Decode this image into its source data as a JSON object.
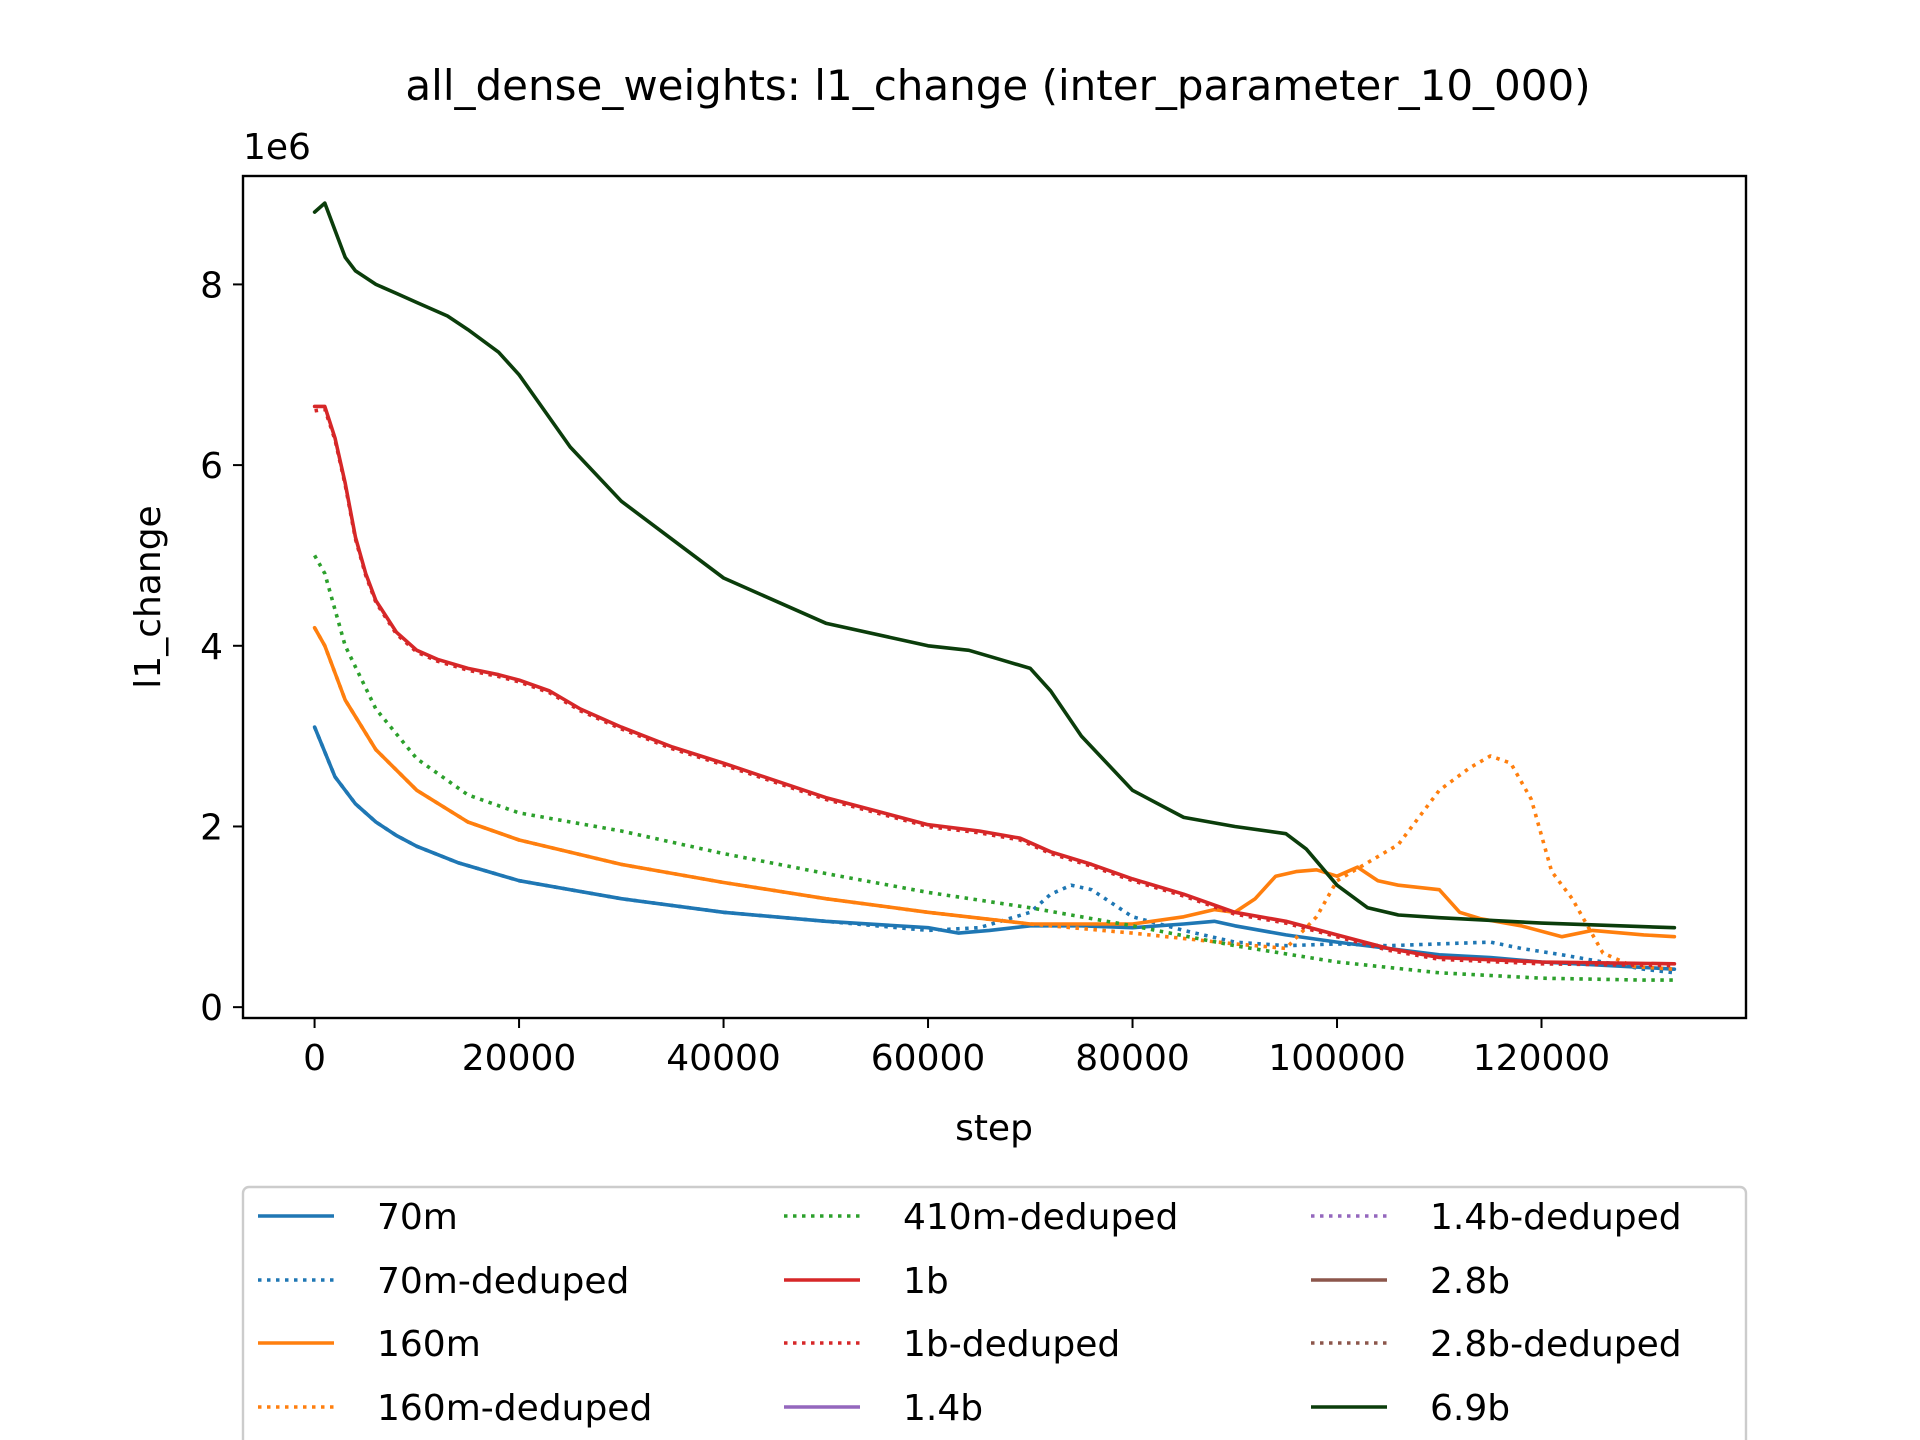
{
  "chart_data": {
    "type": "line",
    "title": "all_dense_weights: l1_change (inter_parameter_10_000)",
    "xlabel": "step",
    "ylabel": "l1_change",
    "y_offset_label": "1e6",
    "xlim": [
      -7000,
      140000
    ],
    "ylim": [
      -0.12,
      9.2
    ],
    "y_scale": 1000000,
    "xticks": [
      0,
      20000,
      40000,
      60000,
      80000,
      100000,
      120000
    ],
    "xtick_labels": [
      "0",
      "20000",
      "40000",
      "60000",
      "80000",
      "100000",
      "120000"
    ],
    "yticks": [
      0,
      2,
      4,
      6,
      8
    ],
    "ytick_labels": [
      "0",
      "2",
      "4",
      "6",
      "8"
    ],
    "grid": false,
    "legend_position": "below plot, 3 columns",
    "series": [
      {
        "name": "70m",
        "color": "#1f77b4",
        "style": "solid",
        "x": [
          0,
          2000,
          4000,
          6000,
          8000,
          10000,
          14000,
          20000,
          30000,
          40000,
          50000,
          60000,
          63000,
          66000,
          70000,
          75000,
          80000,
          85000,
          88000,
          90000,
          95000,
          100000,
          105000,
          110000,
          115000,
          120000,
          125000,
          130000,
          133000
        ],
        "y": [
          3.1,
          2.55,
          2.25,
          2.05,
          1.9,
          1.78,
          1.6,
          1.4,
          1.2,
          1.05,
          0.95,
          0.88,
          0.82,
          0.85,
          0.9,
          0.9,
          0.88,
          0.92,
          0.95,
          0.9,
          0.8,
          0.72,
          0.65,
          0.58,
          0.55,
          0.5,
          0.47,
          0.44,
          0.42
        ]
      },
      {
        "name": "70m-deduped",
        "color": "#1f77b4",
        "style": "dotted",
        "x": [
          0,
          2000,
          4000,
          6000,
          8000,
          10000,
          14000,
          20000,
          30000,
          40000,
          50000,
          60000,
          65000,
          70000,
          72000,
          74000,
          76000,
          78000,
          80000,
          85000,
          90000,
          95000,
          100000,
          105000,
          110000,
          115000,
          118000,
          122000,
          126000,
          130000,
          133000
        ],
        "y": [
          3.1,
          2.55,
          2.25,
          2.05,
          1.9,
          1.78,
          1.6,
          1.4,
          1.2,
          1.05,
          0.95,
          0.85,
          0.88,
          1.05,
          1.25,
          1.35,
          1.3,
          1.15,
          1.0,
          0.85,
          0.72,
          0.68,
          0.7,
          0.68,
          0.7,
          0.72,
          0.65,
          0.58,
          0.5,
          0.42,
          0.38
        ]
      },
      {
        "name": "160m",
        "color": "#ff7f0e",
        "style": "solid",
        "x": [
          0,
          1000,
          3000,
          6000,
          10000,
          15000,
          20000,
          30000,
          40000,
          50000,
          60000,
          70000,
          80000,
          85000,
          88000,
          90000,
          92000,
          94000,
          96000,
          98000,
          100000,
          102000,
          104000,
          106000,
          110000,
          112000,
          114000,
          118000,
          122000,
          125000,
          130000,
          133000
        ],
        "y": [
          4.2,
          4.0,
          3.4,
          2.85,
          2.4,
          2.05,
          1.85,
          1.58,
          1.38,
          1.2,
          1.05,
          0.92,
          0.92,
          1.0,
          1.08,
          1.05,
          1.2,
          1.45,
          1.5,
          1.52,
          1.45,
          1.55,
          1.4,
          1.35,
          1.3,
          1.05,
          0.98,
          0.9,
          0.78,
          0.85,
          0.8,
          0.78
        ]
      },
      {
        "name": "160m-deduped",
        "color": "#ff7f0e",
        "style": "dotted",
        "x": [
          0,
          1000,
          3000,
          6000,
          10000,
          15000,
          20000,
          30000,
          40000,
          50000,
          60000,
          70000,
          80000,
          90000,
          95000,
          98000,
          100000,
          103000,
          106000,
          110000,
          113000,
          115000,
          117000,
          119000,
          121000,
          123000,
          126000,
          129000,
          133000
        ],
        "y": [
          4.2,
          4.0,
          3.4,
          2.85,
          2.4,
          2.05,
          1.85,
          1.58,
          1.38,
          1.2,
          1.05,
          0.92,
          0.82,
          0.7,
          0.65,
          1.0,
          1.4,
          1.6,
          1.8,
          2.4,
          2.65,
          2.78,
          2.7,
          2.3,
          1.5,
          1.2,
          0.6,
          0.45,
          0.42
        ]
      },
      {
        "name": "410m-deduped",
        "color": "#2ca02c",
        "style": "dotted",
        "x": [
          0,
          1000,
          3000,
          6000,
          10000,
          15000,
          20000,
          30000,
          40000,
          50000,
          60000,
          70000,
          80000,
          90000,
          100000,
          110000,
          120000,
          130000,
          133000
        ],
        "y": [
          5.0,
          4.8,
          4.0,
          3.3,
          2.75,
          2.35,
          2.15,
          1.95,
          1.7,
          1.48,
          1.27,
          1.1,
          0.9,
          0.68,
          0.5,
          0.38,
          0.32,
          0.3,
          0.3
        ]
      },
      {
        "name": "1b",
        "color": "#d62728",
        "style": "solid",
        "x": [
          0,
          1000,
          2000,
          3000,
          4000,
          5000,
          6000,
          8000,
          10000,
          12000,
          15000,
          18000,
          20000,
          23000,
          26000,
          30000,
          35000,
          40000,
          50000,
          60000,
          65000,
          69000,
          72000,
          76000,
          80000,
          85000,
          90000,
          95000,
          100000,
          105000,
          110000,
          120000,
          133000
        ],
        "y": [
          6.65,
          6.65,
          6.3,
          5.8,
          5.2,
          4.8,
          4.5,
          4.15,
          3.95,
          3.85,
          3.75,
          3.68,
          3.62,
          3.5,
          3.3,
          3.1,
          2.88,
          2.7,
          2.32,
          2.02,
          1.95,
          1.87,
          1.72,
          1.58,
          1.42,
          1.25,
          1.05,
          0.95,
          0.8,
          0.65,
          0.55,
          0.5,
          0.48
        ]
      },
      {
        "name": "1b-deduped",
        "color": "#d62728",
        "style": "dotted",
        "x": [
          0,
          1000,
          2000,
          3000,
          4000,
          5000,
          6000,
          8000,
          10000,
          12000,
          15000,
          18000,
          20000,
          23000,
          26000,
          30000,
          35000,
          40000,
          50000,
          60000,
          65000,
          69000,
          72000,
          76000,
          80000,
          85000,
          90000,
          95000,
          100000,
          105000,
          110000,
          120000,
          133000
        ],
        "y": [
          6.6,
          6.62,
          6.28,
          5.78,
          5.18,
          4.78,
          4.48,
          4.13,
          3.93,
          3.83,
          3.73,
          3.66,
          3.6,
          3.48,
          3.28,
          3.08,
          2.86,
          2.68,
          2.3,
          2.0,
          1.93,
          1.85,
          1.7,
          1.56,
          1.4,
          1.23,
          1.03,
          0.93,
          0.78,
          0.63,
          0.53,
          0.48,
          0.46
        ]
      },
      {
        "name": "1.4b",
        "color": "#9467bd",
        "style": "solid",
        "x": [],
        "y": []
      },
      {
        "name": "1.4b-deduped",
        "color": "#9467bd",
        "style": "dotted",
        "x": [],
        "y": []
      },
      {
        "name": "2.8b",
        "color": "#8c564b",
        "style": "solid",
        "x": [],
        "y": []
      },
      {
        "name": "2.8b-deduped",
        "color": "#8c564b",
        "style": "dotted",
        "x": [],
        "y": []
      },
      {
        "name": "6.9b",
        "color": "#0b3d0b",
        "style": "solid",
        "x": [
          0,
          1000,
          2000,
          3000,
          4000,
          6000,
          8000,
          10000,
          13000,
          15000,
          18000,
          20000,
          25000,
          30000,
          40000,
          50000,
          60000,
          64000,
          67000,
          70000,
          72000,
          75000,
          80000,
          85000,
          90000,
          95000,
          97000,
          100000,
          103000,
          106000,
          110000,
          120000,
          133000
        ],
        "y": [
          8.8,
          8.9,
          8.6,
          8.3,
          8.15,
          8.0,
          7.9,
          7.8,
          7.65,
          7.5,
          7.25,
          7.0,
          6.2,
          5.6,
          4.75,
          4.25,
          4.0,
          3.95,
          3.85,
          3.75,
          3.5,
          3.0,
          2.4,
          2.1,
          2.0,
          1.92,
          1.75,
          1.35,
          1.1,
          1.02,
          0.99,
          0.93,
          0.88
        ]
      }
    ]
  }
}
